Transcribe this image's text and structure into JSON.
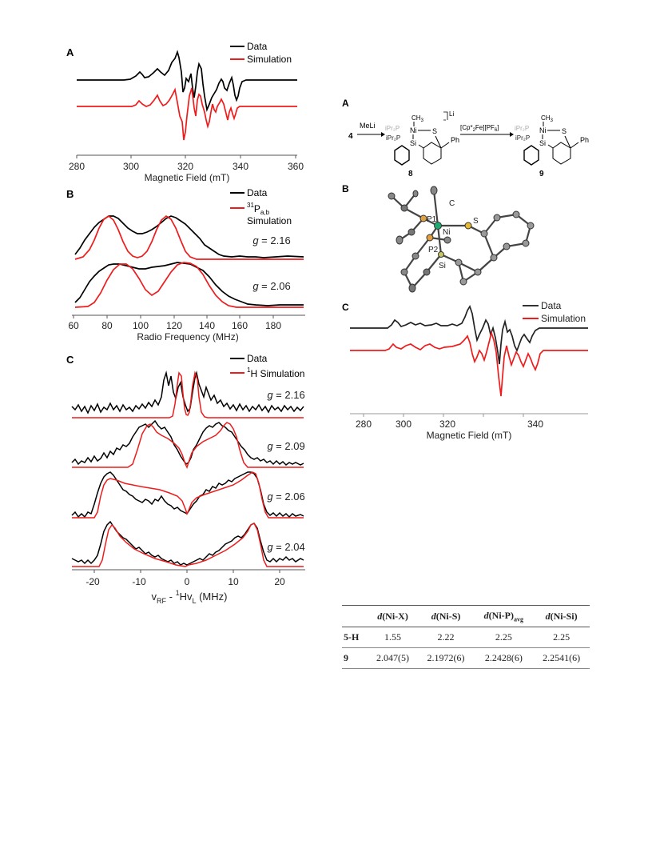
{
  "left_figure": {
    "panel_a": {
      "label": "A",
      "legend": [
        "Data",
        "Simulation"
      ],
      "xlabel": "Magnetic Field (mT)",
      "ticks": [
        "280",
        "300",
        "320",
        "340",
        "360"
      ]
    },
    "panel_b": {
      "label": "B",
      "legend_data": "Data",
      "legend_sim_sup": "31",
      "legend_sim_main": "P",
      "legend_sim_sub": "a,b",
      "legend_sim_line2": "Simulation",
      "g_labels": [
        "2.16",
        "2.06"
      ],
      "xlabel": "Radio Frequency (MHz)",
      "ticks": [
        "60",
        "80",
        "100",
        "120",
        "140",
        "160",
        "180"
      ]
    },
    "panel_c": {
      "label": "C",
      "legend_data": "Data",
      "legend_sim_sup": "1",
      "legend_sim_main": "H Simulation",
      "g_labels": [
        "2.16",
        "2.09",
        "2.06",
        "2.04"
      ],
      "xlabel_v": "v",
      "xlabel_rf": "RF",
      "xlabel_mid": " - ",
      "xlabel_sup": "1",
      "xlabel_hv": "Hv",
      "xlabel_l": "L",
      "xlabel_unit": " (MHz)",
      "ticks": [
        "-20",
        "-10",
        "0",
        "10",
        "20"
      ]
    },
    "g_prefix": "g",
    "g_eq": " = "
  },
  "right_figure": {
    "panel_a": {
      "label": "A",
      "reagent_start": "4",
      "reagent_1": "MeLi",
      "reagent_2_pre": "[Cp*",
      "reagent_2_sub1": "2",
      "reagent_2_mid": "Fe][PF",
      "reagent_2_sub2": "6",
      "reagent_2_post": "]",
      "li_label": "Li",
      "compound_8": "8",
      "compound_9": "9",
      "ch3": "CH",
      "ch3_sub": "3",
      "ni": "Ni",
      "s": "S",
      "si": "Si",
      "ph": "Ph",
      "ipr_p": "iPr₂P",
      "ipr_p_gray": "iPr₂P"
    },
    "panel_b": {
      "label": "B",
      "atoms": [
        "C",
        "P1",
        "Ni",
        "S",
        "P2",
        "Si"
      ]
    },
    "panel_c": {
      "label": "C",
      "legend": [
        "Data",
        "Simulation"
      ],
      "xlabel": "Magnetic Field (mT)",
      "ticks": [
        "280",
        "300",
        "320",
        "340"
      ]
    }
  },
  "table": {
    "headers": [
      {
        "pre": "d",
        "main": "(Ni-X)",
        "sub": ""
      },
      {
        "pre": "d",
        "main": "(Ni-S)",
        "sub": ""
      },
      {
        "pre": "d",
        "main": "(Ni-P)",
        "sub": "avg"
      },
      {
        "pre": "d",
        "main": "(Ni-Si)",
        "sub": ""
      }
    ],
    "rows": [
      {
        "label": "5-H",
        "values": [
          "1.55",
          "2.22",
          "2.25",
          "2.25"
        ]
      },
      {
        "label": "9",
        "values": [
          "2.047(5)",
          "2.1972(6)",
          "2.2428(6)",
          "2.2541(6)"
        ]
      }
    ]
  },
  "colors": {
    "data": "#000000",
    "simulation": "#ee1c1c",
    "axis": "#555555"
  },
  "chart_data": [
    {
      "type": "line",
      "title": "",
      "xlabel": "Magnetic Field (mT)",
      "ylabel": "",
      "xlim": [
        280,
        360
      ],
      "series": [
        {
          "name": "Data",
          "x": [
            280,
            298,
            302,
            305,
            308,
            310,
            313,
            316,
            318,
            319,
            320,
            321,
            323,
            325,
            326,
            327,
            328,
            330,
            332,
            334,
            336,
            337,
            338,
            340,
            345,
            360
          ],
          "y": [
            0,
            0,
            0.15,
            0.05,
            0.25,
            0.1,
            0.35,
            0.9,
            0.2,
            -0.6,
            0.1,
            0.9,
            -0.3,
            0.5,
            -0.8,
            0.2,
            -0.5,
            0.3,
            0.4,
            0.2,
            -0.6,
            0.1,
            0,
            0,
            0,
            0
          ]
        },
        {
          "name": "Simulation",
          "x": [
            280,
            298,
            302,
            305,
            308,
            310,
            313,
            316,
            318,
            319,
            320,
            321,
            323,
            325,
            326,
            327,
            328,
            330,
            332,
            334,
            336,
            337,
            338,
            340,
            345,
            360
          ],
          "y": [
            0,
            0,
            0.2,
            0,
            0.3,
            0,
            0.4,
            0.6,
            -0.2,
            -1,
            0,
            0.9,
            -0.4,
            0.2,
            -0.9,
            0.1,
            -0.7,
            0.2,
            0.4,
            -0.2,
            -0.4,
            0.1,
            0,
            0,
            0,
            0
          ]
        }
      ]
    },
    {
      "type": "line",
      "title": "",
      "xlabel": "Radio Frequency (MHz)",
      "ylabel": "",
      "xlim": [
        60,
        200
      ],
      "series": [
        {
          "name": "Data (g = 2.16)",
          "x": [
            60,
            70,
            80,
            90,
            100,
            110,
            120,
            130,
            140,
            150,
            160,
            170,
            180,
            200
          ],
          "y": [
            0.1,
            0.6,
            1,
            0.85,
            0.6,
            0.75,
            0.95,
            0.85,
            0.5,
            0.25,
            0.1,
            0.05,
            0.05,
            0
          ]
        },
        {
          "name": "31Pa,b Simulation (g = 2.16)",
          "x": [
            60,
            70,
            80,
            90,
            100,
            110,
            120,
            130,
            140,
            150,
            160,
            170,
            180,
            200
          ],
          "y": [
            0,
            0.3,
            1,
            0.3,
            0,
            0.3,
            1,
            0.3,
            0,
            0,
            0,
            0,
            0,
            0
          ]
        },
        {
          "name": "Data (g = 2.06)",
          "x": [
            60,
            70,
            80,
            90,
            100,
            110,
            120,
            130,
            140,
            150,
            160,
            170,
            180,
            200
          ],
          "y": [
            0.05,
            0.4,
            0.85,
            1,
            0.95,
            0.9,
            0.95,
            1,
            0.9,
            0.5,
            0.2,
            0.1,
            0.05,
            0
          ]
        },
        {
          "name": "31Pa,b Simulation (g = 2.06)",
          "x": [
            60,
            70,
            80,
            90,
            100,
            110,
            120,
            130,
            140,
            150,
            160,
            170,
            180,
            200
          ],
          "y": [
            0,
            0.05,
            0.4,
            0.95,
            0.9,
            0.4,
            0.5,
            0.95,
            0.95,
            0.4,
            0.05,
            0,
            0,
            0
          ]
        }
      ]
    },
    {
      "type": "line",
      "title": "",
      "xlabel": "vRF - 1HvL (MHz)",
      "ylabel": "",
      "xlim": [
        -25,
        25
      ],
      "series": [
        {
          "name": "Data (g = 2.16)",
          "x": [
            -25,
            -10,
            -6,
            -4,
            -2,
            0,
            2,
            4,
            6,
            10,
            25
          ],
          "y": [
            0.1,
            0.2,
            0.4,
            1,
            0.5,
            0.2,
            0.6,
            0.9,
            0.4,
            0.2,
            0.1
          ]
        },
        {
          "name": "1H Simulation (g = 2.16)",
          "x": [
            -25,
            -10,
            -4,
            -2,
            0,
            2,
            4,
            10,
            25
          ],
          "y": [
            0,
            0,
            0,
            1,
            0,
            1,
            0,
            0,
            0
          ]
        },
        {
          "name": "Data (g = 2.09)",
          "x": [
            -25,
            -15,
            -10,
            -6,
            -2,
            0,
            2,
            6,
            10,
            15,
            25
          ],
          "y": [
            0,
            0.2,
            1,
            0.85,
            0.5,
            0.1,
            0.5,
            0.85,
            1,
            0.2,
            0
          ]
        },
        {
          "name": "1H Simulation (g = 2.09)",
          "x": [
            -25,
            -15,
            -9,
            -5,
            -2,
            0,
            2,
            5,
            9,
            15,
            25
          ],
          "y": [
            0,
            0,
            0.95,
            0.75,
            0.55,
            0,
            0.55,
            0.75,
            0.95,
            0,
            0
          ]
        },
        {
          "name": "Data (g = 2.06)",
          "x": [
            -25,
            -20,
            -16,
            -14,
            -10,
            -5,
            0,
            5,
            10,
            14,
            16,
            20,
            25
          ],
          "y": [
            0,
            0.05,
            0.5,
            1,
            0.6,
            0.35,
            0.2,
            0.4,
            0.7,
            1,
            0.5,
            0.05,
            0
          ]
        },
        {
          "name": "1H Simulation (g = 2.06)",
          "x": [
            -25,
            -16,
            -14,
            -8,
            -2,
            0,
            2,
            8,
            14,
            16,
            25
          ],
          "y": [
            0,
            0,
            0.9,
            0.7,
            0.55,
            0,
            0.55,
            0.75,
            1,
            0,
            0
          ]
        },
        {
          "name": "Data (g = 2.04)",
          "x": [
            -25,
            -18,
            -15,
            -12,
            -5,
            0,
            5,
            12,
            15,
            18,
            25
          ],
          "y": [
            0.1,
            0.2,
            1,
            0.6,
            0.3,
            0.1,
            0.3,
            0.6,
            1,
            0.2,
            0.1
          ]
        },
        {
          "name": "1H Simulation (g = 2.04)",
          "x": [
            -25,
            -17,
            -15,
            -10,
            -4,
            0,
            4,
            10,
            15,
            17,
            25
          ],
          "y": [
            0,
            0,
            0.95,
            0.45,
            0.2,
            0.05,
            0.25,
            0.5,
            0.95,
            0,
            0
          ]
        }
      ]
    },
    {
      "type": "line",
      "title": "",
      "xlabel": "Magnetic Field (mT)",
      "ylabel": "",
      "xlim": [
        275,
        355
      ],
      "series": [
        {
          "name": "Data",
          "x": [
            275,
            288,
            291,
            294,
            300,
            305,
            310,
            315,
            318,
            320,
            322,
            324,
            326,
            328,
            330,
            332,
            334,
            336,
            340,
            345,
            355
          ],
          "y": [
            0,
            0,
            0.3,
            0.1,
            0.2,
            0.1,
            0.2,
            1,
            0.2,
            -0.5,
            0.7,
            -0.3,
            -1,
            0.2,
            -0.5,
            0.1,
            -0.3,
            0,
            0,
            0,
            0
          ]
        },
        {
          "name": "Simulation",
          "x": [
            275,
            288,
            291,
            294,
            300,
            305,
            310,
            315,
            318,
            320,
            322,
            324,
            326,
            328,
            330,
            332,
            334,
            336,
            340,
            345,
            355
          ],
          "y": [
            0,
            0,
            0.25,
            0.15,
            0.2,
            0.15,
            0.2,
            0.5,
            -0.2,
            0.3,
            -0.5,
            0.6,
            -1.2,
            0.4,
            -0.5,
            0.1,
            -0.5,
            0,
            0,
            0,
            0
          ]
        }
      ]
    }
  ]
}
